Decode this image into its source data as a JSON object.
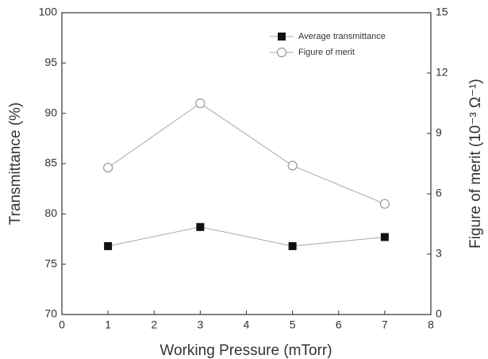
{
  "chart_data": {
    "type": "line",
    "xlabel": "Working Pressure (mTorr)",
    "ylabel": "Transmittance (%)",
    "y2label": "Figure of merit (10⁻³ Ω⁻¹)",
    "x": [
      1,
      3,
      5,
      7
    ],
    "series": [
      {
        "name": "Average transmittance",
        "color": "#111111",
        "marker": "square",
        "values": [
          76.8,
          78.7,
          76.8,
          77.7
        ]
      },
      {
        "name": "Figure of merit",
        "color": "#999999",
        "marker": "open-circle",
        "axis": "y2",
        "values": [
          7.3,
          10.5,
          7.4,
          5.5
        ]
      }
    ],
    "xlim": [
      0,
      8
    ],
    "xticks": [
      0,
      1,
      2,
      3,
      4,
      5,
      6,
      7,
      8
    ],
    "ylim": [
      70,
      100
    ],
    "yticks": [
      70,
      75,
      80,
      85,
      90,
      95,
      100
    ],
    "y2lim": [
      0,
      15
    ],
    "y2ticks": [
      0,
      3,
      6,
      9,
      12,
      15
    ],
    "legend": "upper right"
  }
}
